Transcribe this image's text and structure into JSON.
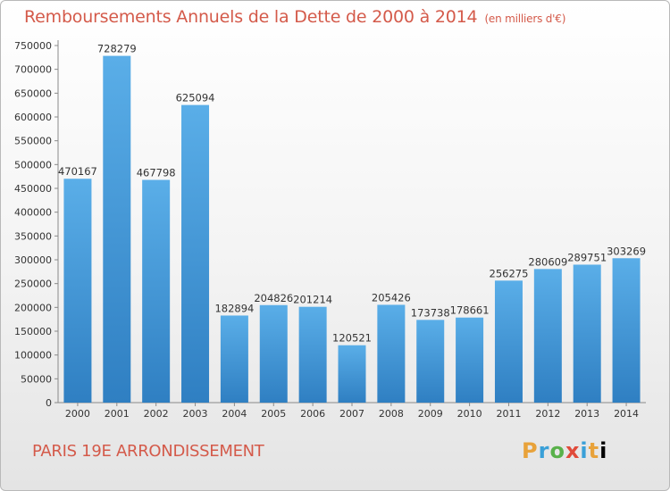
{
  "header": {
    "title": "Remboursements Annuels de la Dette de 2000 à 2014",
    "unit": "(en milliers d'€)"
  },
  "footer": {
    "location": "PARIS 19E  ARRONDISSEMENT",
    "brand": "Proxiti"
  },
  "colors": {
    "bar": "#3d95d6",
    "title": "#d45a4a"
  },
  "chart_data": {
    "type": "bar",
    "title": "Remboursements Annuels de la Dette de 2000 à 2014",
    "xlabel": "",
    "ylabel": "",
    "ylim": [
      0,
      750000
    ],
    "ytick_step": 50000,
    "grid": false,
    "categories": [
      "2000",
      "2001",
      "2002",
      "2003",
      "2004",
      "2005",
      "2006",
      "2007",
      "2008",
      "2009",
      "2010",
      "2011",
      "2012",
      "2013",
      "2014"
    ],
    "values": [
      470167,
      728279,
      467798,
      625094,
      182894,
      204826,
      201214,
      120521,
      205426,
      173738,
      178661,
      256275,
      280609,
      289751,
      303269
    ]
  }
}
